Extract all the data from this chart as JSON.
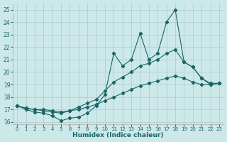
{
  "xlabel": "Humidex (Indice chaleur)",
  "background_color": "#cce8e8",
  "grid_color": "#aacccc",
  "line_color": "#1a6666",
  "xlim": [
    -0.5,
    23.5
  ],
  "ylim": [
    15.8,
    25.5
  ],
  "yticks": [
    16,
    17,
    18,
    19,
    20,
    21,
    22,
    23,
    24,
    25
  ],
  "xticks": [
    0,
    1,
    2,
    3,
    4,
    5,
    6,
    7,
    8,
    9,
    10,
    11,
    12,
    13,
    14,
    15,
    16,
    17,
    18,
    19,
    20,
    21,
    22,
    23
  ],
  "series": [
    {
      "x": [
        0,
        1,
        2,
        3,
        4,
        5,
        6,
        7,
        8,
        9,
        10,
        11,
        12,
        13,
        14,
        15,
        16,
        17,
        18,
        19,
        20,
        21,
        22,
        23
      ],
      "y": [
        17.3,
        17.0,
        16.8,
        16.7,
        16.5,
        16.1,
        16.3,
        16.4,
        16.7,
        17.3,
        18.2,
        21.5,
        20.5,
        21.0,
        23.1,
        21.0,
        21.5,
        24.0,
        25.0,
        20.8,
        20.4,
        19.5,
        19.0,
        19.1
      ]
    },
    {
      "x": [
        0,
        1,
        2,
        3,
        4,
        5,
        6,
        7,
        8,
        9,
        10,
        11,
        12,
        13,
        14,
        15,
        16,
        17,
        18,
        19,
        20,
        21,
        22,
        23
      ],
      "y": [
        17.3,
        17.1,
        17.0,
        16.9,
        16.8,
        16.7,
        16.9,
        17.2,
        17.5,
        17.8,
        18.5,
        19.2,
        19.6,
        20.0,
        20.5,
        20.7,
        21.0,
        21.5,
        21.8,
        20.8,
        20.4,
        19.5,
        19.1,
        19.1
      ]
    },
    {
      "x": [
        0,
        1,
        2,
        3,
        4,
        5,
        6,
        7,
        8,
        9,
        10,
        11,
        12,
        13,
        14,
        15,
        16,
        17,
        18,
        19,
        20,
        21,
        22,
        23
      ],
      "y": [
        17.3,
        17.1,
        17.0,
        17.0,
        16.9,
        16.8,
        16.9,
        17.0,
        17.2,
        17.4,
        17.7,
        18.0,
        18.3,
        18.6,
        18.9,
        19.1,
        19.3,
        19.5,
        19.7,
        19.5,
        19.2,
        19.0,
        19.0,
        19.1
      ]
    }
  ]
}
